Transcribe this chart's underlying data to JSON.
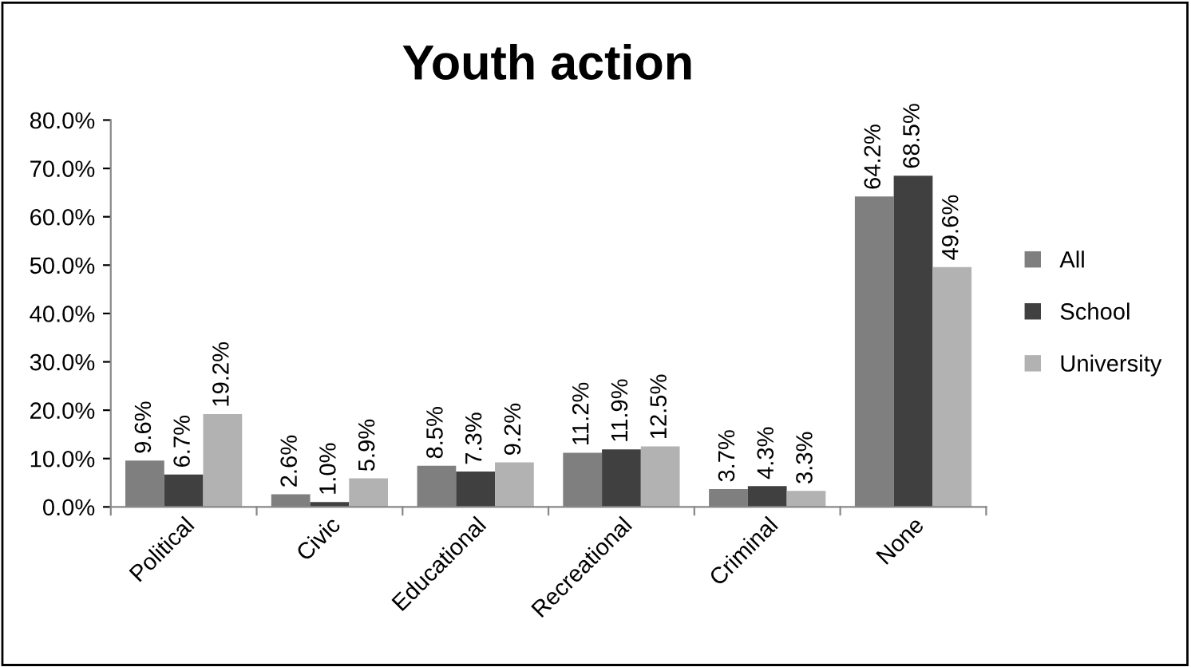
{
  "chart_data": {
    "type": "bar",
    "title": "Youth action",
    "categories": [
      "Political",
      "Civic",
      "Educational",
      "Recreational",
      "Criminal",
      "None"
    ],
    "series": [
      {
        "name": "All",
        "color": "#7f7f7f",
        "values": [
          9.6,
          2.6,
          8.5,
          11.2,
          3.7,
          64.2
        ],
        "value_labels": [
          "9.6%",
          "2.6%",
          "8.5%",
          "11.2%",
          "3.7%",
          "64.2%"
        ]
      },
      {
        "name": "School",
        "color": "#404040",
        "values": [
          6.7,
          1.0,
          7.3,
          11.9,
          4.3,
          68.5
        ],
        "value_labels": [
          "6.7%",
          "1.0%",
          "7.3%",
          "11.9%",
          "4.3%",
          "68.5%"
        ]
      },
      {
        "name": "University",
        "color": "#b2b2b2",
        "values": [
          19.2,
          5.9,
          9.2,
          12.5,
          3.3,
          49.6
        ],
        "value_labels": [
          "19.2%",
          "5.9%",
          "9.2%",
          "12.5%",
          "3.3%",
          "49.6%"
        ]
      }
    ],
    "ylim": [
      0,
      80
    ],
    "yticks": [
      {
        "value": 0,
        "label": "0.0%"
      },
      {
        "value": 10,
        "label": "10.0%"
      },
      {
        "value": 20,
        "label": "20.0%"
      },
      {
        "value": 30,
        "label": "30.0%"
      },
      {
        "value": 40,
        "label": "40.0%"
      },
      {
        "value": 50,
        "label": "50.0%"
      },
      {
        "value": 60,
        "label": "60.0%"
      },
      {
        "value": 70,
        "label": "70.0%"
      },
      {
        "value": 80,
        "label": "80.0%"
      }
    ],
    "grid": false,
    "legend": "right"
  }
}
